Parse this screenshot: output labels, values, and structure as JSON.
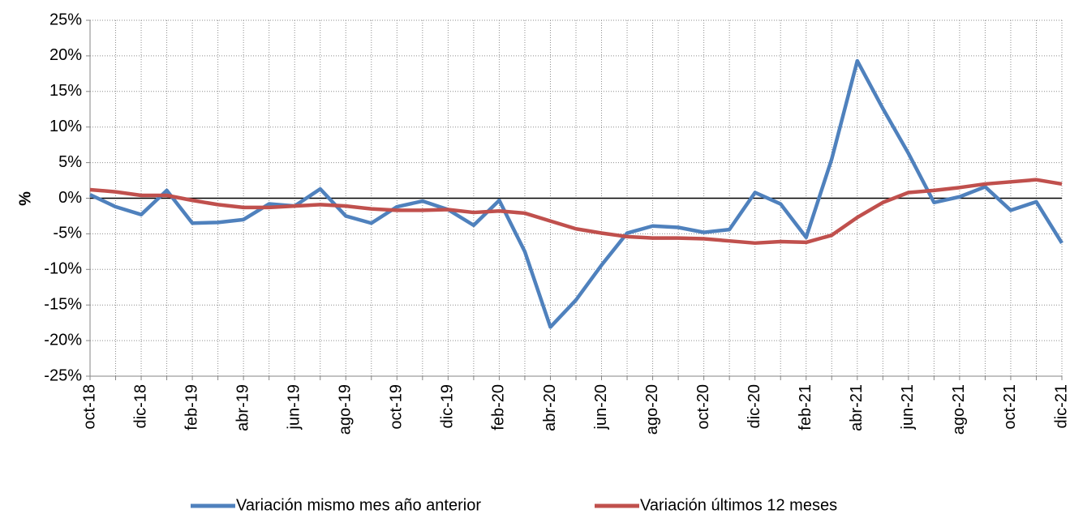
{
  "chart_data": {
    "type": "line",
    "ylabel": "%",
    "categories": [
      "oct-18",
      null,
      "dic-18",
      null,
      "feb-19",
      null,
      "abr-19",
      null,
      "jun-19",
      null,
      "ago-19",
      null,
      "oct-19",
      null,
      "dic-19",
      null,
      "feb-20",
      null,
      "abr-20",
      null,
      "jun-20",
      null,
      "ago-20",
      null,
      "oct-20",
      null,
      "dic-20",
      null,
      "feb-21",
      null,
      "abr-21",
      null,
      "jun-21",
      null,
      "ago-21",
      null,
      "oct-21",
      null,
      "dic-21"
    ],
    "series": [
      {
        "name": "Variación mismo mes año anterior",
        "color": "#4f81bd",
        "values": [
          0.5,
          -1.2,
          -2.3,
          1.1,
          -3.5,
          -3.4,
          -3.0,
          -0.8,
          -1.1,
          1.3,
          -2.5,
          -3.5,
          -1.2,
          -0.4,
          -1.6,
          -3.8,
          -0.3,
          -7.5,
          -18.1,
          -14.3,
          -9.4,
          -4.9,
          -3.9,
          -4.1,
          -4.8,
          -4.4,
          0.8,
          -0.8,
          -5.5,
          5.5,
          19.3,
          12.6,
          6.3,
          -0.6,
          0.2,
          1.6,
          -1.7,
          -0.5,
          -6.3
        ]
      },
      {
        "name": "Variación últimos 12 meses",
        "color": "#c0504d",
        "values": [
          1.2,
          0.9,
          0.4,
          0.4,
          -0.3,
          -0.9,
          -1.3,
          -1.3,
          -1.1,
          -0.9,
          -1.1,
          -1.5,
          -1.7,
          -1.7,
          -1.6,
          -2.0,
          -1.8,
          -2.1,
          -3.2,
          -4.3,
          -4.9,
          -5.4,
          -5.6,
          -5.6,
          -5.7,
          -6.0,
          -6.3,
          -6.1,
          -6.2,
          -5.2,
          -2.7,
          -0.6,
          0.8,
          1.1,
          1.5,
          2.0,
          2.3,
          2.6,
          2.0
        ]
      }
    ],
    "ylim": [
      -25,
      25
    ],
    "yticks": [
      {
        "value": -25,
        "label": "-25%"
      },
      {
        "value": -20,
        "label": "-20%"
      },
      {
        "value": -15,
        "label": "-15%"
      },
      {
        "value": -10,
        "label": "-10%"
      },
      {
        "value": -5,
        "label": "-5%"
      },
      {
        "value": 0,
        "label": "0%"
      },
      {
        "value": 5,
        "label": "5%"
      },
      {
        "value": 10,
        "label": "10%"
      },
      {
        "value": 15,
        "label": "15%"
      },
      {
        "value": 20,
        "label": "20%"
      },
      {
        "value": 25,
        "label": "25%"
      }
    ],
    "grid": true,
    "legend": "bottom"
  }
}
